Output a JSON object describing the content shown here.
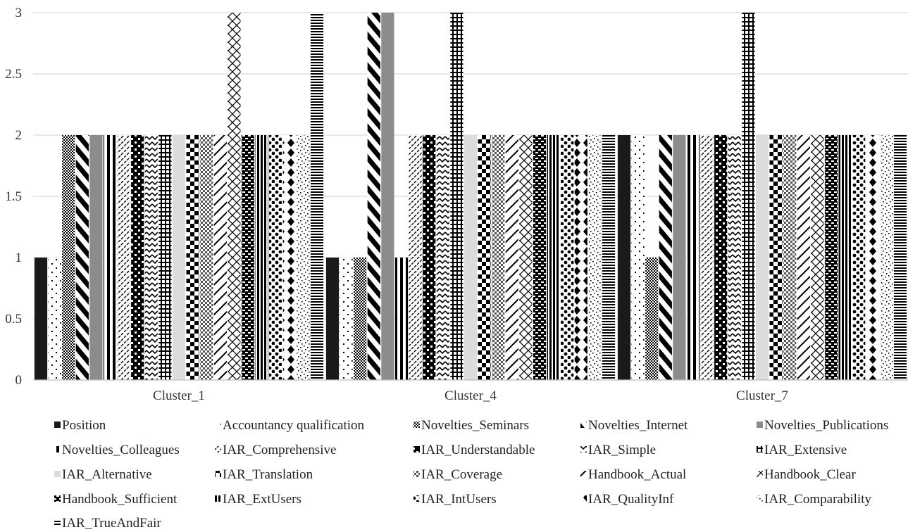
{
  "chart_data": {
    "type": "bar",
    "title": "",
    "xlabel": "",
    "ylabel": "",
    "ylim": [
      0,
      3
    ],
    "yticks": [
      0,
      0.5,
      1,
      1.5,
      2,
      2.5,
      3
    ],
    "ytick_labels": [
      "0",
      "0.5",
      "1",
      "1.5",
      "2",
      "2.5",
      "3"
    ],
    "grid": true,
    "legend_position": "bottom",
    "categories": [
      "Cluster_1",
      "Cluster_4",
      "Cluster_7"
    ],
    "series": [
      {
        "name": "Position",
        "values": [
          1,
          1,
          2
        ],
        "pattern": "solid-black"
      },
      {
        "name": "Accountancy qualification",
        "values": [
          1,
          1,
          2
        ],
        "pattern": "sparse-dots"
      },
      {
        "name": "Novelties_Seminars",
        "values": [
          2,
          1,
          1
        ],
        "pattern": "checker-fine"
      },
      {
        "name": "Novelties_Internet",
        "values": [
          2,
          3,
          2
        ],
        "pattern": "diagonal-wide"
      },
      {
        "name": "Novelties_Publications",
        "values": [
          2,
          3,
          2
        ],
        "pattern": "solid-gray"
      },
      {
        "name": "Novelties_Colleagues",
        "values": [
          2,
          1,
          2
        ],
        "pattern": "vertical-wide"
      },
      {
        "name": "IAR_Comprehensive",
        "values": [
          2,
          2,
          2
        ],
        "pattern": "dashed-diagonal"
      },
      {
        "name": "IAR_Understandable",
        "values": [
          2,
          2,
          2
        ],
        "pattern": "brick"
      },
      {
        "name": "IAR_Simple",
        "values": [
          2,
          2,
          2
        ],
        "pattern": "zigzag"
      },
      {
        "name": "IAR_Extensive",
        "values": [
          2,
          3,
          3
        ],
        "pattern": "grid"
      },
      {
        "name": "IAR_Alternative",
        "values": [
          2,
          2,
          2
        ],
        "pattern": "solid-light"
      },
      {
        "name": "IAR_Translation",
        "values": [
          2,
          2,
          2
        ],
        "pattern": "checker-large"
      },
      {
        "name": "IAR_Coverage",
        "values": [
          2,
          2,
          2
        ],
        "pattern": "checker-gray"
      },
      {
        "name": "Handbook_Actual",
        "values": [
          2,
          2,
          2
        ],
        "pattern": "diagonal-thin"
      },
      {
        "name": "Handbook_Clear",
        "values": [
          3,
          2,
          2
        ],
        "pattern": "crosshatch"
      },
      {
        "name": "Handbook_Sufficient",
        "values": [
          2,
          2,
          2
        ],
        "pattern": "weave"
      },
      {
        "name": "IAR_ExtUsers",
        "values": [
          2,
          2,
          2
        ],
        "pattern": "vertical-dense"
      },
      {
        "name": "IAR_IntUsers",
        "values": [
          2,
          2,
          2
        ],
        "pattern": "big-dots"
      },
      {
        "name": "IAR_QualityInf",
        "values": [
          2,
          2,
          2
        ],
        "pattern": "diamonds"
      },
      {
        "name": "IAR_Comparability",
        "values": [
          2,
          2,
          2
        ],
        "pattern": "random-dots"
      },
      {
        "name": "IAR_TrueAndFair",
        "values": [
          3,
          2,
          2
        ],
        "pattern": "horizontal"
      }
    ]
  }
}
